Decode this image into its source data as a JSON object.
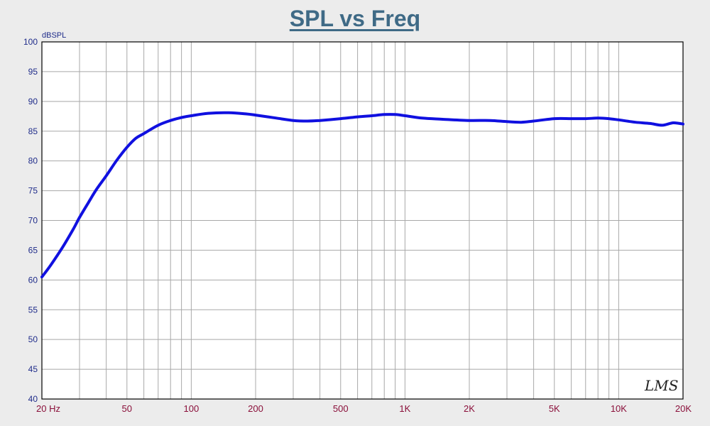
{
  "chart_data": {
    "type": "line",
    "title": "SPL vs Freq",
    "ylabel": "dBSPL",
    "xlabel": "",
    "x_scale": "log",
    "xlim": [
      20,
      20000
    ],
    "ylim": [
      40,
      100
    ],
    "y_ticks": [
      40,
      45,
      50,
      55,
      60,
      65,
      70,
      75,
      80,
      85,
      90,
      95,
      100
    ],
    "x_tick_labels": [
      {
        "value": 20,
        "label": "20  Hz"
      },
      {
        "value": 50,
        "label": "50"
      },
      {
        "value": 100,
        "label": "100"
      },
      {
        "value": 200,
        "label": "200"
      },
      {
        "value": 500,
        "label": "500"
      },
      {
        "value": 1000,
        "label": "1K"
      },
      {
        "value": 2000,
        "label": "2K"
      },
      {
        "value": 5000,
        "label": "5K"
      },
      {
        "value": 10000,
        "label": "10K"
      },
      {
        "value": 20000,
        "label": "20K"
      }
    ],
    "grid": true,
    "line_color": "#1010e0",
    "watermark": "LMS",
    "series": [
      {
        "x": [
          20,
          22,
          25,
          28,
          30,
          33,
          36,
          40,
          45,
          50,
          55,
          60,
          70,
          80,
          90,
          100,
          120,
          150,
          180,
          200,
          250,
          300,
          350,
          400,
          500,
          600,
          700,
          800,
          900,
          1000,
          1200,
          1500,
          2000,
          2500,
          3000,
          3500,
          4000,
          5000,
          6000,
          7000,
          8000,
          9000,
          10000,
          12000,
          14000,
          16000,
          18000,
          20000
        ],
        "y": [
          60.5,
          62.5,
          65.5,
          68.5,
          70.5,
          73.0,
          75.2,
          77.5,
          80.2,
          82.3,
          83.8,
          84.6,
          86.0,
          86.8,
          87.3,
          87.6,
          88.0,
          88.1,
          87.9,
          87.7,
          87.2,
          86.8,
          86.7,
          86.8,
          87.1,
          87.4,
          87.6,
          87.8,
          87.8,
          87.6,
          87.2,
          87.0,
          86.8,
          86.8,
          86.6,
          86.5,
          86.7,
          87.1,
          87.1,
          87.1,
          87.2,
          87.1,
          86.9,
          86.5,
          86.3,
          86.0,
          86.4,
          86.2
        ]
      }
    ]
  }
}
